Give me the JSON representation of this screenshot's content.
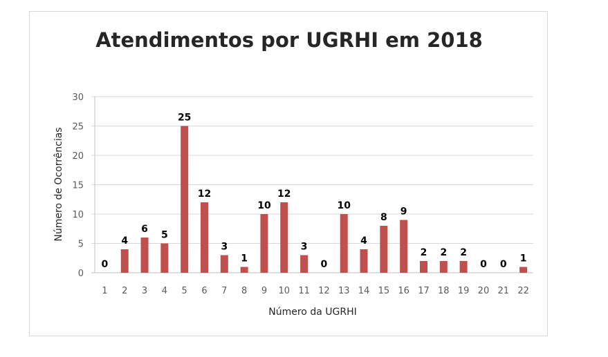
{
  "chart_data": {
    "type": "bar",
    "title": "Atendimentos por UGRHI em 2018",
    "xlabel": "Número da UGRHI",
    "ylabel": "Número de Ocorrências",
    "categories": [
      "1",
      "2",
      "3",
      "4",
      "5",
      "6",
      "7",
      "8",
      "9",
      "10",
      "11",
      "12",
      "13",
      "14",
      "15",
      "16",
      "17",
      "18",
      "19",
      "20",
      "21",
      "22"
    ],
    "values": [
      0,
      4,
      6,
      5,
      25,
      12,
      3,
      1,
      10,
      12,
      3,
      0,
      10,
      4,
      8,
      9,
      2,
      2,
      2,
      0,
      0,
      1
    ],
    "ylim": [
      0,
      30
    ],
    "yticks": [
      0,
      5,
      10,
      15,
      20,
      25,
      30
    ],
    "grid": true,
    "legend": "none",
    "bar_color": "#c0504d",
    "data_labels": true
  }
}
